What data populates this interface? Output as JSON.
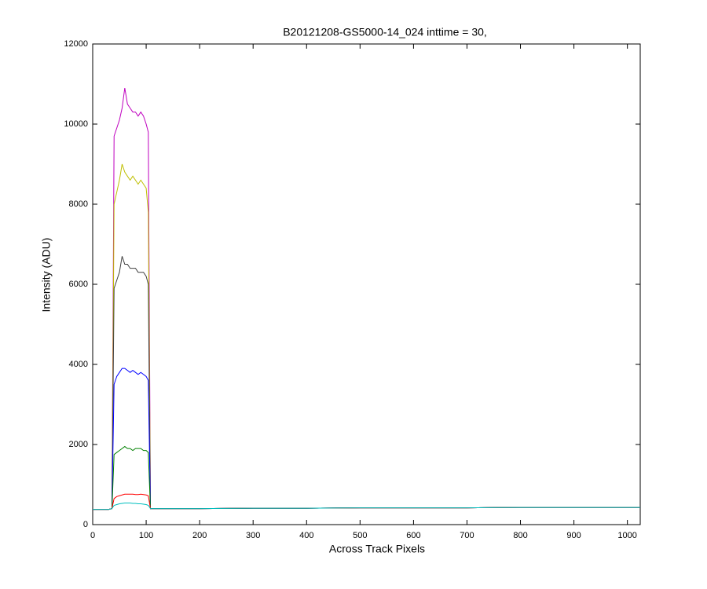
{
  "chart_data": {
    "type": "line",
    "title": "B20121208-GS5000-14_024 inttime = 30,",
    "x_label": "Across Track Pixels",
    "y_label": "Intensity (ADU)",
    "xlim": [
      0,
      1024
    ],
    "ylim": [
      0,
      12000
    ],
    "xticks": [
      0,
      100,
      200,
      300,
      400,
      500,
      600,
      700,
      800,
      900,
      1000
    ],
    "yticks": [
      0,
      2000,
      4000,
      6000,
      8000,
      10000,
      12000
    ],
    "grid": false,
    "x": [
      0,
      30,
      36,
      40,
      45,
      50,
      55,
      60,
      65,
      70,
      75,
      80,
      85,
      90,
      95,
      100,
      104,
      108,
      112,
      120,
      200,
      300,
      400,
      500,
      600,
      700,
      800,
      900,
      1024
    ],
    "series": [
      {
        "color": "#bf00bf",
        "values": [
          380,
          380,
          400,
          9700,
          9900,
          10100,
          10400,
          10900,
          10500,
          10400,
          10300,
          10300,
          10200,
          10300,
          10200,
          10000,
          9800,
          400,
          400,
          400,
          400,
          410,
          410,
          420,
          420,
          420,
          430,
          430,
          430
        ]
      },
      {
        "color": "#bfbf00",
        "values": [
          380,
          380,
          400,
          8000,
          8300,
          8600,
          9000,
          8800,
          8700,
          8600,
          8700,
          8600,
          8500,
          8600,
          8500,
          8400,
          7800,
          400,
          400,
          400,
          400,
          410,
          410,
          420,
          420,
          420,
          430,
          430,
          430
        ]
      },
      {
        "color": "#404040",
        "values": [
          380,
          380,
          400,
          5900,
          6100,
          6300,
          6700,
          6500,
          6500,
          6400,
          6400,
          6400,
          6300,
          6300,
          6300,
          6200,
          6000,
          400,
          400,
          400,
          400,
          410,
          410,
          420,
          420,
          420,
          430,
          430,
          430
        ]
      },
      {
        "color": "#0000ff",
        "values": [
          380,
          380,
          400,
          3500,
          3700,
          3800,
          3900,
          3900,
          3850,
          3800,
          3850,
          3800,
          3750,
          3800,
          3750,
          3700,
          3600,
          400,
          400,
          400,
          400,
          410,
          410,
          420,
          420,
          420,
          430,
          430,
          430
        ]
      },
      {
        "color": "#008000",
        "values": [
          380,
          380,
          400,
          1750,
          1800,
          1850,
          1900,
          1950,
          1900,
          1900,
          1850,
          1900,
          1900,
          1900,
          1850,
          1850,
          1800,
          400,
          400,
          400,
          400,
          410,
          410,
          420,
          420,
          420,
          430,
          430,
          430
        ]
      },
      {
        "color": "#ff0000",
        "values": [
          380,
          380,
          400,
          650,
          700,
          720,
          740,
          760,
          760,
          760,
          760,
          750,
          750,
          760,
          750,
          740,
          720,
          400,
          400,
          400,
          400,
          410,
          410,
          420,
          420,
          420,
          430,
          430,
          430
        ]
      },
      {
        "color": "#00bfbf",
        "values": [
          380,
          380,
          400,
          480,
          500,
          520,
          530,
          540,
          540,
          540,
          530,
          530,
          520,
          520,
          510,
          500,
          480,
          400,
          400,
          400,
          400,
          410,
          410,
          420,
          420,
          420,
          430,
          430,
          430
        ]
      }
    ]
  }
}
